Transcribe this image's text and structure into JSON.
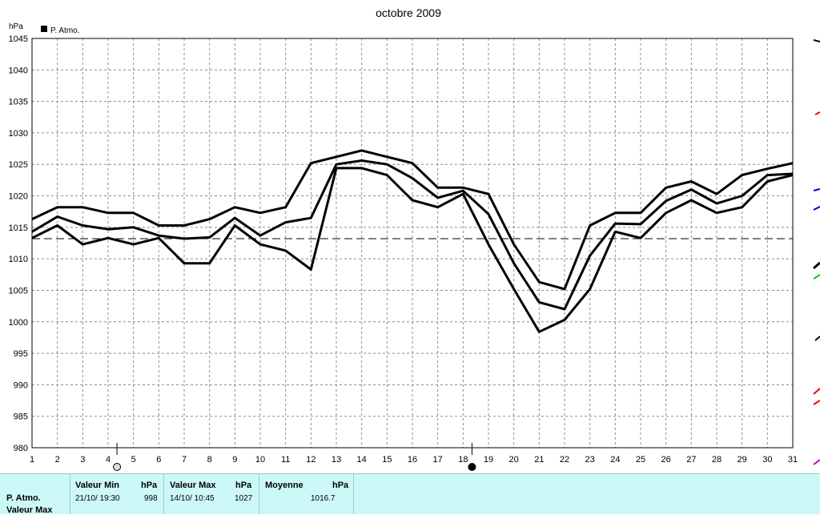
{
  "chart_data": {
    "type": "line",
    "title": "octobre 2009",
    "ylabel": "hPa",
    "legend": "P. Atmo.",
    "legend_position": "top-left",
    "ylim": [
      980,
      1045
    ],
    "yticks": [
      980,
      985,
      990,
      995,
      1000,
      1005,
      1010,
      1015,
      1020,
      1025,
      1030,
      1035,
      1040,
      1045
    ],
    "x": [
      1,
      2,
      3,
      4,
      5,
      6,
      7,
      8,
      9,
      10,
      11,
      12,
      13,
      14,
      15,
      16,
      17,
      18,
      19,
      20,
      21,
      22,
      23,
      24,
      25,
      26,
      27,
      28,
      29,
      30,
      31
    ],
    "grid": true,
    "reference_line": 1013.2,
    "series": [
      {
        "values": [
          1016.3,
          1018.2,
          1018.2,
          1017.3,
          1017.3,
          1015.3,
          1015.3,
          1016.3,
          1018.2,
          1017.3,
          1018.2,
          1025.2,
          1026.2,
          1027.2,
          1026.2,
          1025.2,
          1021.3,
          1021.3,
          1020.3,
          1012.3,
          1006.3,
          1005.2,
          1015.3,
          1017.3,
          1017.3,
          1021.3,
          1022.3,
          1020.3,
          1023.3,
          1024.3,
          1025.2
        ]
      },
      {
        "values": [
          1014.3,
          1016.7,
          1015.3,
          1014.7,
          1015.0,
          1013.7,
          1013.2,
          1013.4,
          1016.5,
          1013.7,
          1015.8,
          1016.5,
          1025.0,
          1025.6,
          1025.0,
          1022.8,
          1019.7,
          1020.8,
          1017.1,
          1009.3,
          1003.1,
          1002.0,
          1010.5,
          1015.6,
          1015.5,
          1019.2,
          1021.0,
          1018.8,
          1020.0,
          1023.3,
          1023.5
        ]
      },
      {
        "values": [
          1013.3,
          1015.3,
          1012.3,
          1013.3,
          1012.3,
          1013.3,
          1009.3,
          1009.3,
          1015.3,
          1012.3,
          1011.3,
          1008.3,
          1024.4,
          1024.4,
          1023.3,
          1019.3,
          1018.2,
          1020.3,
          1012.3,
          1005.2,
          998.4,
          1000.3,
          1005.2,
          1014.3,
          1013.3,
          1017.3,
          1019.3,
          1017.3,
          1018.2,
          1022.3,
          1023.3
        ]
      }
    ]
  },
  "markers": {
    "sun_label": "4",
    "moon_label": "18"
  },
  "summary": {
    "row_label1": "P. Atmo.",
    "row_label2": "Valeur Max",
    "min_header": "Valeur Min",
    "min_unit": "hPa",
    "min_date": "21/10/  19:30",
    "min_value": "998",
    "max_header": "Valeur Max",
    "max_unit": "hPa",
    "max_date": "14/10/  10:45",
    "max_value": "1027",
    "avg_header": "Moyenne",
    "avg_unit": "hPa",
    "avg_value": "1016.7"
  },
  "colors": {
    "background": "#ffffff",
    "summary_bg": "#ccf8f8",
    "line": "#000000",
    "grid": "#8c8c8c"
  }
}
